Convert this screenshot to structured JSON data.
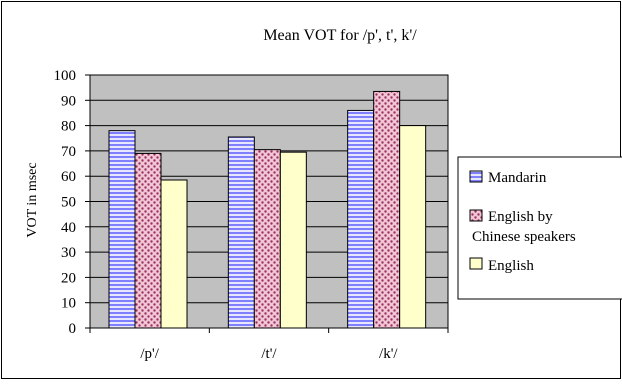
{
  "chart_data": {
    "type": "bar",
    "title": "Mean VOT for /p', t', k'/",
    "ylabel": "VOT in msec",
    "xlabel": "",
    "categories": [
      "/p'/",
      "/t'/",
      "/k'/"
    ],
    "series": [
      {
        "name": "Mandarin",
        "values": [
          78,
          75.5,
          86
        ]
      },
      {
        "name": "English by Chinese speakers",
        "values": [
          69,
          70.5,
          93.5
        ]
      },
      {
        "name": "English",
        "values": [
          58.5,
          69.5,
          80
        ]
      }
    ],
    "ylim": [
      0,
      100
    ],
    "yticks": [
      0,
      10,
      20,
      30,
      40,
      50,
      60,
      70,
      80,
      90,
      100
    ],
    "grid": true,
    "legend_position": "right",
    "colors": {
      "plot_background": "#c0c0c0",
      "mandarin_fill": "#e6e6ff",
      "mandarin_stripe": "#8080ff",
      "english_chinese_fill": "#f3c6d6",
      "english_chinese_pattern": "#99335f",
      "english_fill": "#ffffcc",
      "bar_outline": "#000000"
    }
  }
}
